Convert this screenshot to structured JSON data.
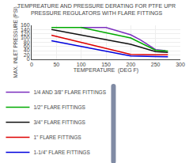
{
  "chart_data": {
    "type": "line",
    "title": "TEMPREATURE AND PRESSURE DERATING FOR PTFE UPR\nPRESSURE REGULATORS WITH FLARE FITTINGS",
    "xlabel": "TEMPERATURE  (DEG F)",
    "ylabel": "MAX. INLET PRESSURE (PSI)",
    "xlim": [
      0,
      300
    ],
    "ylim": [
      0,
      160
    ],
    "xticks": [
      0,
      50,
      100,
      150,
      200,
      250,
      300
    ],
    "yticks": [
      0,
      20,
      40,
      60,
      80,
      100,
      120,
      140,
      160
    ],
    "grid": true,
    "legend": "lower left",
    "series": [
      {
        "name": "1/4 AND 3/8\" FLARE FITTINGS",
        "color": "#7B2FBE",
        "x": [
          100,
          150,
          200,
          220,
          250,
          270
        ],
        "values": [
          150,
          150,
          115,
          90,
          45,
          40
        ]
      },
      {
        "name": "1/2\" FLARE FITTINGS",
        "color": "#00AA00",
        "x": [
          40,
          100,
          200,
          250,
          275
        ],
        "values": [
          150,
          150,
          100,
          42,
          38
        ]
      },
      {
        "name": "3/4\" FLARE FITTINGS",
        "color": "#111111",
        "x": [
          40,
          200,
          250,
          275
        ],
        "values": [
          140,
          70,
          35,
          32
        ]
      },
      {
        "name": "1\" FLARE FITTINGS",
        "color": "#DD0000",
        "x": [
          40,
          200,
          250,
          275
        ],
        "values": [
          113,
          22,
          20,
          20
        ]
      },
      {
        "name": "1-1/4\" FLARE FITTINGS",
        "color": "#0000DD",
        "x": [
          40,
          200,
          250,
          275
        ],
        "values": [
          87,
          15,
          12,
          11
        ]
      }
    ]
  }
}
